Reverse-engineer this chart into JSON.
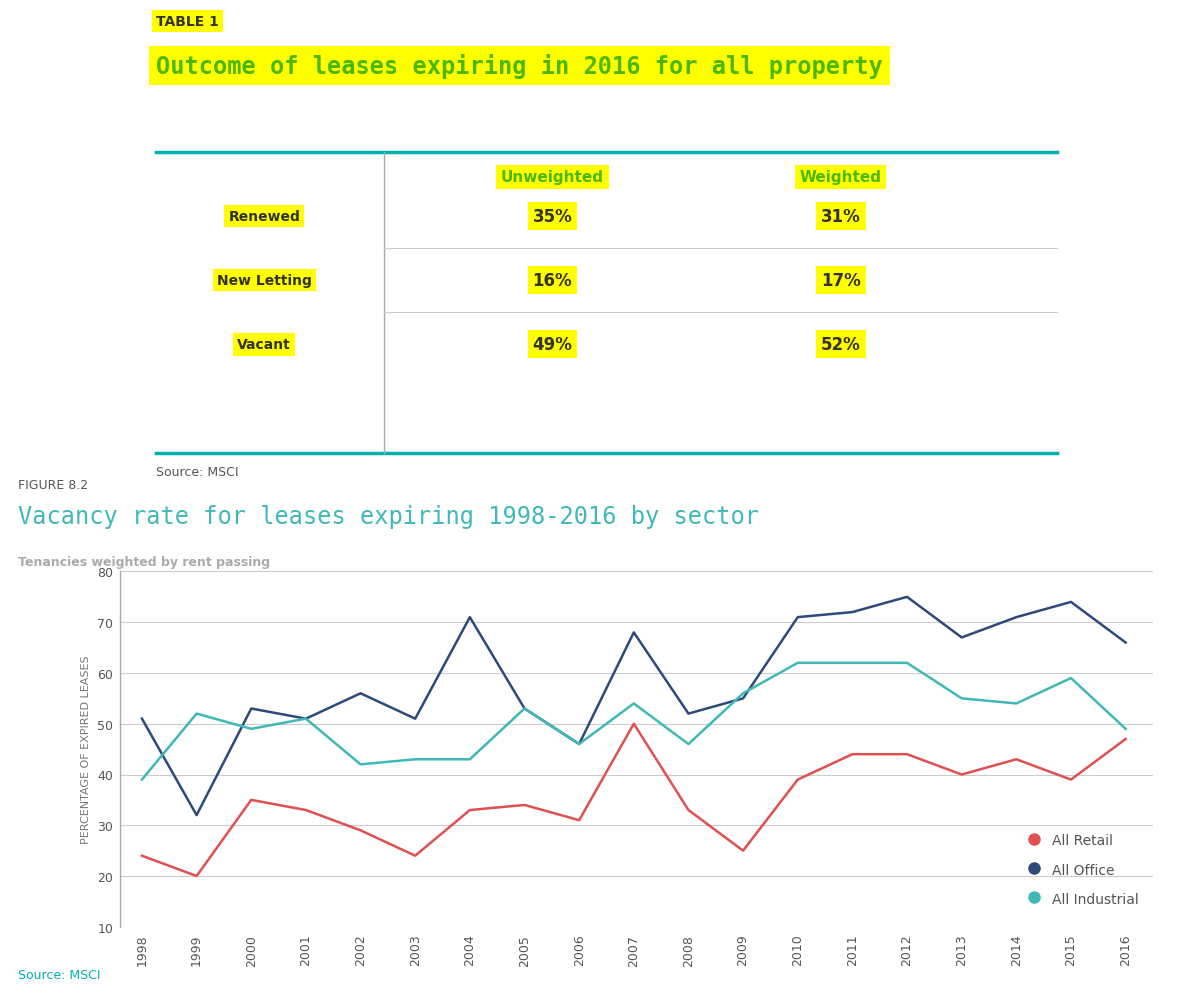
{
  "table_label": "TABLE 1",
  "table_title": "Outcome of leases expiring in 2016 for all property",
  "table_source": "Source: MSCI",
  "table_rows": [
    [
      "Renewed",
      "35%",
      "31%"
    ],
    [
      "New Letting",
      "16%",
      "17%"
    ],
    [
      "Vacant",
      "49%",
      "52%"
    ]
  ],
  "figure_label": "FIGURE 8.2",
  "figure_title": "Vacancy rate for leases expiring 1998-2016 by sector",
  "figure_subtitle": "Tenancies weighted by rent passing",
  "figure_source": "Source: MSCI",
  "ylabel": "PERCENTAGE OF EXPIRED LEASES",
  "years": [
    1998,
    1999,
    2000,
    2001,
    2002,
    2003,
    2004,
    2005,
    2006,
    2007,
    2008,
    2009,
    2010,
    2011,
    2012,
    2013,
    2014,
    2015,
    2016
  ],
  "all_retail": [
    24,
    20,
    35,
    33,
    29,
    24,
    33,
    34,
    31,
    50,
    33,
    25,
    39,
    44,
    44,
    40,
    43,
    39,
    47
  ],
  "all_office": [
    51,
    32,
    53,
    51,
    56,
    51,
    71,
    53,
    46,
    68,
    52,
    55,
    71,
    72,
    75,
    67,
    71,
    74,
    66
  ],
  "all_industrial": [
    39,
    52,
    49,
    51,
    42,
    43,
    43,
    53,
    46,
    54,
    46,
    56,
    62,
    62,
    62,
    55,
    54,
    59,
    49
  ],
  "retail_color": "#e05050",
  "office_color": "#2d4a7a",
  "industrial_color": "#40b8b8",
  "ylim": [
    10,
    80
  ],
  "yticks": [
    10,
    20,
    30,
    40,
    50,
    60,
    70,
    80
  ],
  "bg_color": "#ffffff",
  "yellow_bg": "#ffff00",
  "green_text": "#4db800",
  "teal_color": "#00b0b0",
  "figure_title_color": "#40b8b8",
  "figure_label_color": "#555555",
  "grid_color": "#cccccc"
}
